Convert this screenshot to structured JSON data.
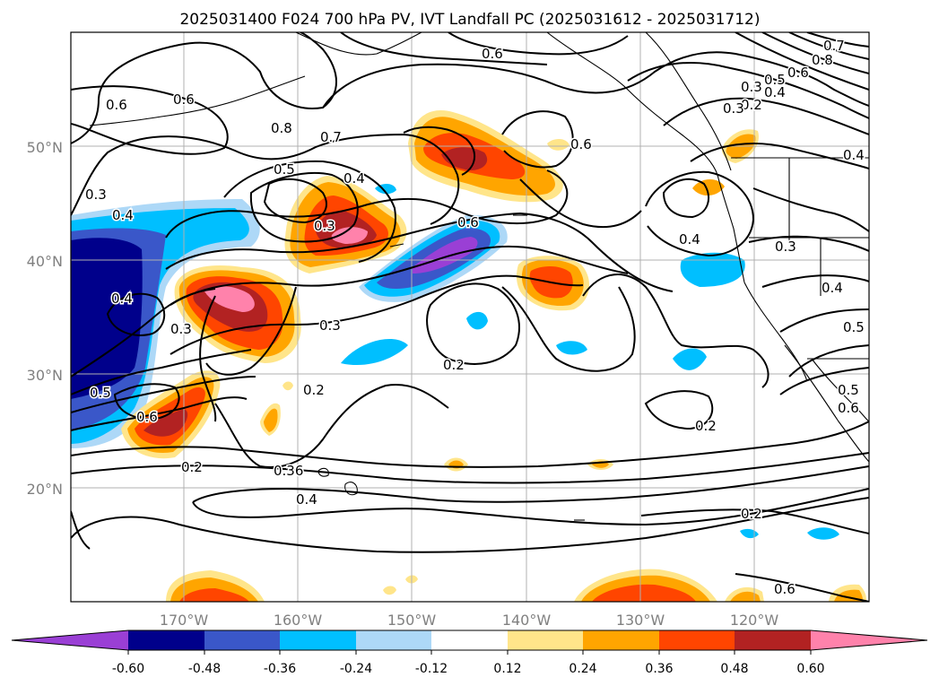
{
  "title": "2025031400 F024 700 hPa PV, IVT Landfall PC (2025031612 - 2025031712)",
  "map": {
    "lon_range": [
      180,
      110
    ],
    "lat_range": [
      10,
      60
    ],
    "lat_ticks": [
      {
        "value": 50,
        "label": "50°N"
      },
      {
        "value": 40,
        "label": "40°N"
      },
      {
        "value": 30,
        "label": "30°N"
      },
      {
        "value": 20,
        "label": "20°N"
      }
    ],
    "lon_ticks": [
      {
        "value": 170,
        "label": "170°W"
      },
      {
        "value": 160,
        "label": "160°W"
      },
      {
        "value": 150,
        "label": "150°W"
      },
      {
        "value": 140,
        "label": "140°W"
      },
      {
        "value": 130,
        "label": "130°W"
      },
      {
        "value": 120,
        "label": "120°W"
      }
    ]
  },
  "colorbar": {
    "colors": [
      "#9a3fd5",
      "#00008b",
      "#3a57c9",
      "#00bfff",
      "#add8f7",
      "#ffffff",
      "#ffe58a",
      "#ffa500",
      "#ff4500",
      "#b22222",
      "#ff82ab"
    ],
    "ticks": [
      "-0.60",
      "-0.48",
      "-0.36",
      "-0.24",
      "-0.12",
      "0.12",
      "0.24",
      "0.36",
      "0.48",
      "0.60"
    ]
  },
  "shading_colors": {
    "pos1": "#ffe58a",
    "pos2": "#ffa500",
    "pos3": "#ff4500",
    "pos4": "#b22222",
    "pos5": "#ff82ab",
    "neg1": "#add8f7",
    "neg2": "#00bfff",
    "neg3": "#3a57c9",
    "neg4": "#00008b",
    "neg5": "#9a3fd5"
  },
  "contour_labels": [
    {
      "text": "0.3"
    },
    {
      "text": "0.6"
    },
    {
      "text": "0.6"
    },
    {
      "text": "0.8"
    },
    {
      "text": "0.7"
    },
    {
      "text": "0.5"
    },
    {
      "text": "0.4"
    },
    {
      "text": "0.3"
    },
    {
      "text": "0.4"
    },
    {
      "text": "0.3"
    },
    {
      "text": "0.4"
    },
    {
      "text": "0.3"
    },
    {
      "text": "0.5"
    },
    {
      "text": "0.6"
    },
    {
      "text": "0.2"
    },
    {
      "text": "0.2"
    },
    {
      "text": "0.36"
    },
    {
      "text": "0.4"
    },
    {
      "text": "0.6"
    },
    {
      "text": "0.2"
    },
    {
      "text": "0.6"
    },
    {
      "text": "0.6"
    },
    {
      "text": "0.4"
    },
    {
      "text": "0.3"
    },
    {
      "text": "0.2"
    },
    {
      "text": "0.2"
    },
    {
      "text": "0.6"
    },
    {
      "text": "0.7"
    },
    {
      "text": "0.8"
    },
    {
      "text": "0.6"
    },
    {
      "text": "0.5"
    },
    {
      "text": "0.4"
    },
    {
      "text": "0.3"
    },
    {
      "text": "0.2"
    },
    {
      "text": "0.4"
    },
    {
      "text": "0.4"
    },
    {
      "text": "0.5"
    },
    {
      "text": "0.5"
    },
    {
      "text": "0.6"
    },
    {
      "text": "0.3"
    }
  ]
}
